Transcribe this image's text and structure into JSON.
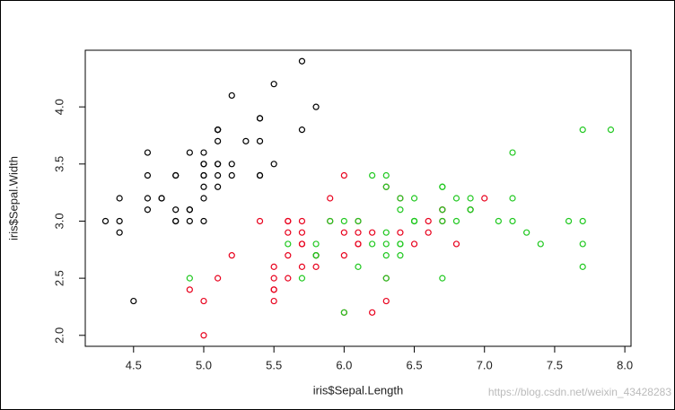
{
  "chart_data": {
    "type": "scatter",
    "x_label": "iris$Sepal.Length",
    "y_label": "iris$Sepal.Width",
    "watermark": "https://blog.csdn.net/weixin_43428283",
    "xlim": [
      4.156,
      8.044
    ],
    "ylim": [
      1.904,
      4.496
    ],
    "xticks": [
      4.5,
      {
        "value": 5,
        "label": "5.0"
      },
      5.5,
      {
        "value": 6,
        "label": "6.0"
      },
      6.5,
      {
        "value": 7,
        "label": "7.0"
      },
      7.5,
      {
        "value": 8,
        "label": "8.0"
      }
    ],
    "yticks": [
      {
        "value": 2,
        "label": "2.0"
      },
      2.5,
      {
        "value": 3,
        "label": "3.0"
      },
      3.5,
      {
        "value": 4,
        "label": "4.0"
      }
    ],
    "series": [
      {
        "color": "#000000",
        "x": [
          5.1,
          4.9,
          4.7,
          4.6,
          5.0,
          5.4,
          4.6,
          5.0,
          4.4,
          4.9,
          5.4,
          4.8,
          4.8,
          4.3,
          5.8,
          5.7,
          5.4,
          5.1,
          5.7,
          5.1,
          5.4,
          5.1,
          4.6,
          5.1,
          4.8,
          5.0,
          5.0,
          5.2,
          5.2,
          4.7,
          4.8,
          5.4,
          5.2,
          5.5,
          4.9,
          5.0,
          5.5,
          4.9,
          4.4,
          5.1,
          5.0,
          4.5,
          4.4,
          5.0,
          5.1,
          4.8,
          5.1,
          4.6,
          5.3,
          5.0
        ],
        "values": [
          3.5,
          3.0,
          3.2,
          3.1,
          3.6,
          3.9,
          3.4,
          3.4,
          2.9,
          3.1,
          3.7,
          3.4,
          3.0,
          3.0,
          4.0,
          4.4,
          3.9,
          3.5,
          3.8,
          3.8,
          3.4,
          3.7,
          3.6,
          3.3,
          3.4,
          3.0,
          3.4,
          3.5,
          3.4,
          3.2,
          3.1,
          3.4,
          4.1,
          4.2,
          3.1,
          3.2,
          3.5,
          3.6,
          3.0,
          3.4,
          3.5,
          2.3,
          3.2,
          3.5,
          3.8,
          3.0,
          3.8,
          3.2,
          3.7,
          3.3
        ]
      },
      {
        "color": "#e8001c",
        "x": [
          7.0,
          6.4,
          6.9,
          5.5,
          6.5,
          5.7,
          6.3,
          4.9,
          6.6,
          5.2,
          5.0,
          5.9,
          6.0,
          6.1,
          5.6,
          6.7,
          5.6,
          5.8,
          6.2,
          5.6,
          5.9,
          6.1,
          6.3,
          6.1,
          6.4,
          6.6,
          6.8,
          6.7,
          6.0,
          5.7,
          5.5,
          5.5,
          5.8,
          6.0,
          5.4,
          6.0,
          6.7,
          6.3,
          5.6,
          5.5,
          5.5,
          6.1,
          5.8,
          5.0,
          5.6,
          5.7,
          5.7,
          6.2,
          5.1,
          5.7
        ],
        "values": [
          3.2,
          3.2,
          3.1,
          2.3,
          2.8,
          2.8,
          3.3,
          2.4,
          2.9,
          2.7,
          2.0,
          3.0,
          2.2,
          2.9,
          2.9,
          3.1,
          3.0,
          2.7,
          2.2,
          2.5,
          3.2,
          2.8,
          2.5,
          2.8,
          2.9,
          3.0,
          2.8,
          3.0,
          2.9,
          2.6,
          2.4,
          2.4,
          2.7,
          2.7,
          3.0,
          3.4,
          3.1,
          2.3,
          3.0,
          2.5,
          2.6,
          3.0,
          2.6,
          2.3,
          2.7,
          3.0,
          2.9,
          2.9,
          2.5,
          2.8
        ]
      },
      {
        "color": "#1fc81f",
        "x": [
          6.3,
          5.8,
          7.1,
          6.3,
          6.5,
          7.6,
          4.9,
          7.3,
          6.7,
          7.2,
          6.5,
          6.4,
          6.8,
          5.7,
          5.8,
          6.4,
          6.5,
          7.7,
          7.7,
          6.0,
          6.9,
          5.6,
          7.7,
          6.3,
          6.7,
          7.2,
          6.2,
          6.1,
          6.4,
          7.2,
          7.4,
          7.9,
          6.4,
          6.3,
          6.1,
          7.7,
          6.3,
          6.4,
          6.0,
          6.9,
          6.7,
          6.9,
          5.8,
          6.8,
          6.7,
          6.7,
          6.3,
          6.5,
          6.2,
          5.9
        ],
        "values": [
          3.3,
          2.7,
          3.0,
          2.9,
          3.0,
          3.0,
          2.5,
          2.9,
          2.5,
          3.6,
          3.2,
          2.7,
          3.0,
          2.5,
          2.8,
          3.2,
          3.0,
          3.8,
          2.6,
          2.2,
          3.2,
          2.8,
          2.8,
          2.7,
          3.3,
          3.2,
          2.8,
          3.0,
          2.8,
          3.0,
          2.8,
          3.8,
          2.8,
          2.8,
          2.6,
          3.0,
          3.4,
          3.1,
          3.0,
          3.1,
          3.1,
          3.1,
          2.7,
          3.2,
          3.3,
          3.0,
          2.5,
          3.0,
          3.4,
          3.0
        ]
      }
    ]
  }
}
